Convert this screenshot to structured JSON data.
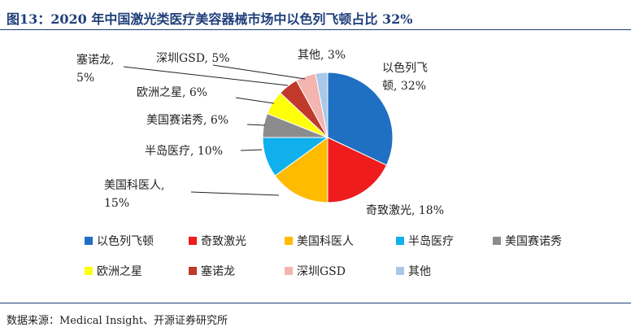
{
  "figure": {
    "title": "图13：2020 年中国激光类医疗美容器械市场中以色列飞顿占比 32%",
    "source": "数据来源：Medical Insight、开源证券研究所"
  },
  "chart_data": {
    "type": "pie",
    "title": "",
    "slices": [
      {
        "name": "以色列飞顿",
        "value": 32,
        "label": "以色列飞顿, 32%",
        "color": "#1f6fc2"
      },
      {
        "name": "奇致激光",
        "value": 18,
        "label": "奇致激光, 18%",
        "color": "#ee1c1c"
      },
      {
        "name": "美国科医人",
        "value": 15,
        "label": "美国科医人, 15%",
        "color": "#ffbb00"
      },
      {
        "name": "半岛医疗",
        "value": 10,
        "label": "半岛医疗, 10%",
        "color": "#10b0ec"
      },
      {
        "name": "美国赛诺秀",
        "value": 6,
        "label": "美国赛诺秀, 6%",
        "color": "#8c8c8c"
      },
      {
        "name": "欧洲之星",
        "value": 6,
        "label": "欧洲之星, 6%",
        "color": "#ffff0a"
      },
      {
        "name": "塞诺龙",
        "value": 5,
        "label": "塞诺龙, 5%",
        "color": "#c0392b"
      },
      {
        "name": "深圳GSD",
        "value": 5,
        "label": "深圳GSD, 5%",
        "color": "#f4b4b0"
      },
      {
        "name": "其他",
        "value": 3,
        "label": "其他, 3%",
        "color": "#a9c8ea"
      }
    ],
    "legend_placement": "bottom"
  }
}
